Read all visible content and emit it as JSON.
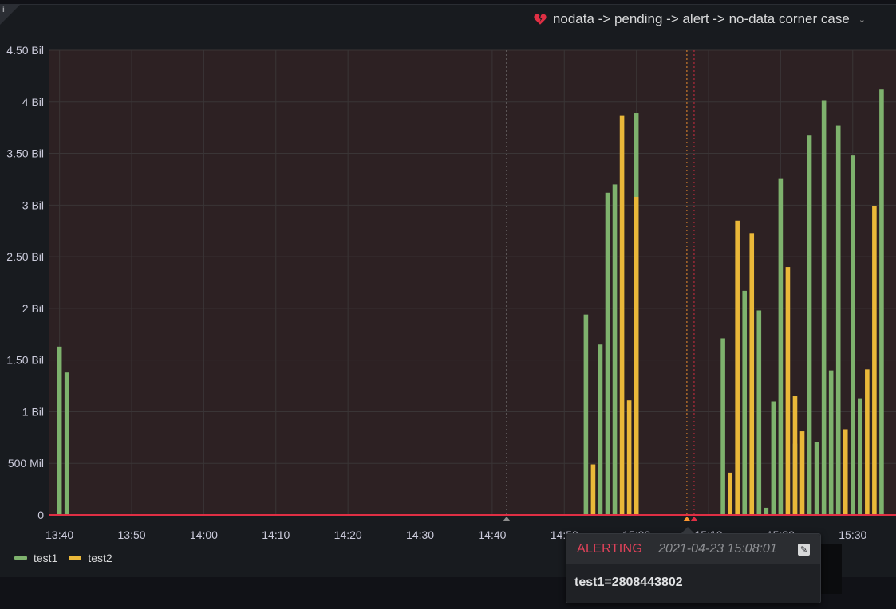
{
  "panel": {
    "title": "nodata -> pending -> alert -> no-data corner case",
    "state_icon": "broken-heart-icon",
    "info_icon": "info-icon"
  },
  "colors": {
    "test1": "#7eb26d",
    "test2": "#eab839",
    "alert_fill": "#2d2123",
    "alert_line": "#e02f44",
    "annotation_line": "#8e8e8e",
    "grid": "#3a3536"
  },
  "chart_data": {
    "type": "bar",
    "y_unit_labels": [
      "0",
      "500 Mil",
      "1 Bil",
      "1.50 Bil",
      "2 Bil",
      "2.50 Bil",
      "3 Bil",
      "3.50 Bil",
      "4 Bil",
      "4.50 Bil"
    ],
    "ylim": [
      0,
      4500000000
    ],
    "x_tick_labels": [
      "13:40",
      "13:50",
      "14:00",
      "14:10",
      "14:20",
      "14:30",
      "14:40",
      "14:50",
      "15:00",
      "15:10",
      "15:20",
      "15:30"
    ],
    "x_range": [
      "13:39",
      "15:36"
    ],
    "threshold": 0,
    "series": [
      {
        "name": "test1",
        "points": [
          [
            "13:40",
            1630000000
          ],
          [
            "13:41",
            1380000000
          ],
          [
            "14:53",
            1940000000
          ],
          [
            "14:55",
            1650000000
          ],
          [
            "14:56",
            3120000000
          ],
          [
            "14:57",
            3200000000
          ],
          [
            "15:00",
            3890000000
          ],
          [
            "15:12",
            1710000000
          ],
          [
            "15:15",
            2170000000
          ],
          [
            "15:17",
            1980000000
          ],
          [
            "15:18",
            70000000
          ],
          [
            "15:19",
            1100000000
          ],
          [
            "15:20",
            3260000000
          ],
          [
            "15:22",
            690000000
          ],
          [
            "15:24",
            3680000000
          ],
          [
            "15:25",
            710000000
          ],
          [
            "15:26",
            4010000000
          ],
          [
            "15:27",
            1400000000
          ],
          [
            "15:28",
            3770000000
          ],
          [
            "15:30",
            3480000000
          ],
          [
            "15:31",
            1130000000
          ],
          [
            "15:34",
            4120000000
          ]
        ]
      },
      {
        "name": "test2",
        "points": [
          [
            "14:54",
            490000000
          ],
          [
            "14:58",
            3870000000
          ],
          [
            "14:59",
            1110000000
          ],
          [
            "15:00",
            3080000000
          ],
          [
            "15:13",
            410000000
          ],
          [
            "15:14",
            2850000000
          ],
          [
            "15:16",
            2730000000
          ],
          [
            "15:21",
            2400000000
          ],
          [
            "15:22",
            1150000000
          ],
          [
            "15:23",
            810000000
          ],
          [
            "15:29",
            830000000
          ],
          [
            "15:32",
            1410000000
          ],
          [
            "15:33",
            2990000000
          ]
        ]
      }
    ],
    "annotations": [
      {
        "time": "14:42",
        "kind": "no_data"
      },
      {
        "time": "15:07",
        "kind": "pending"
      },
      {
        "time": "15:08",
        "kind": "alerting"
      }
    ],
    "grid": true,
    "legend": "bottom-left"
  },
  "legend": [
    {
      "name": "test1",
      "color": "#7eb26d"
    },
    {
      "name": "test2",
      "color": "#eab839"
    }
  ],
  "tooltip": {
    "state": "ALERTING",
    "time": "2021-04-23 15:08:01",
    "edit_icon": "edit-icon",
    "body": "test1=2808443802"
  }
}
